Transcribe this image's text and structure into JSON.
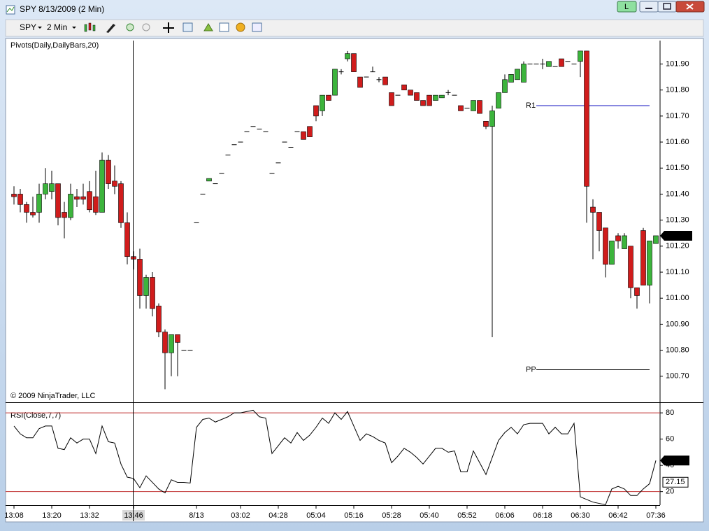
{
  "window": {
    "title": "SPY  8/13/2009 (2 Min)",
    "workspace_button": "L",
    "toolbar": {
      "instrument": "SPY",
      "interval": "2 Min"
    }
  },
  "chart_data": [
    {
      "type": "candlestick",
      "title": "Pivots(Daily,DailyBars,20)",
      "copyright": "© 2009 NinjaTrader, LLC",
      "up_color": "#3cb43c",
      "down_color": "#d01c1c",
      "ylim": [
        100.6,
        101.99
      ],
      "yticks": [
        {
          "value": 100.7,
          "label": "100.70"
        },
        {
          "value": 100.8,
          "label": "100.80"
        },
        {
          "value": 100.9,
          "label": "100.90"
        },
        {
          "value": 101.0,
          "label": "101.00"
        },
        {
          "value": 101.1,
          "label": "101.10"
        },
        {
          "value": 101.2,
          "label": "101.20"
        },
        {
          "value": 101.3,
          "label": "101.30"
        },
        {
          "value": 101.4,
          "label": "101.40"
        },
        {
          "value": 101.5,
          "label": "101.50"
        },
        {
          "value": 101.6,
          "label": "101.60"
        },
        {
          "value": 101.7,
          "label": "101.70"
        },
        {
          "value": 101.8,
          "label": "101.80"
        },
        {
          "value": 101.9,
          "label": "101.90"
        }
      ],
      "last_price": 101.24,
      "pivots": [
        {
          "name": "R1",
          "value": 101.74,
          "color": "#1010c0"
        },
        {
          "name": "PP",
          "value": 100.725,
          "color": "#000000"
        }
      ],
      "open": [
        101.4,
        101.4,
        101.36,
        101.33,
        101.33,
        101.4,
        101.41,
        101.44,
        101.33,
        101.31,
        101.39,
        101.39,
        101.41,
        101.39,
        101.33,
        101.53,
        101.45,
        101.44,
        101.29,
        101.16,
        101.15,
        101.01,
        101.08,
        100.97,
        100.87,
        100.79,
        100.86,
        100.8,
        100.8,
        101.29,
        101.4,
        101.45,
        101.44,
        101.48,
        101.55,
        101.59,
        101.6,
        101.64,
        101.66,
        101.65,
        101.64,
        101.48,
        101.52,
        101.6,
        101.58,
        101.64,
        101.64,
        101.66,
        101.74,
        101.72,
        101.78,
        101.78,
        101.87,
        101.92,
        101.94,
        101.85,
        101.85,
        101.87,
        101.84,
        101.85,
        101.79,
        101.78,
        101.82,
        101.8,
        101.79,
        101.76,
        101.78,
        101.76,
        101.77,
        101.79,
        101.78,
        101.74,
        101.73,
        101.72,
        101.76,
        101.68,
        101.66,
        101.73,
        101.79,
        101.83,
        101.84,
        101.83,
        101.9,
        101.9,
        101.9,
        101.89,
        101.89,
        101.92,
        101.91,
        101.9,
        101.91,
        101.95,
        101.35,
        101.33,
        101.27,
        101.13,
        101.24,
        101.19,
        101.2,
        101.04,
        101.26,
        101.05,
        101.21
      ],
      "high": [
        101.43,
        101.42,
        101.37,
        101.39,
        101.44,
        101.5,
        101.49,
        101.44,
        101.37,
        101.44,
        101.42,
        101.44,
        101.45,
        101.49,
        101.56,
        101.55,
        101.51,
        101.45,
        101.33,
        101.18,
        101.19,
        101.09,
        101.1,
        100.98,
        100.88,
        100.86,
        100.86,
        100.8,
        100.8,
        101.29,
        101.4,
        101.46,
        101.44,
        101.48,
        101.55,
        101.59,
        101.6,
        101.64,
        101.66,
        101.65,
        101.64,
        101.48,
        101.52,
        101.6,
        101.58,
        101.64,
        101.64,
        101.66,
        101.74,
        101.78,
        101.78,
        101.88,
        101.88,
        101.95,
        101.94,
        101.85,
        101.85,
        101.89,
        101.85,
        101.85,
        101.79,
        101.78,
        101.82,
        101.8,
        101.79,
        101.76,
        101.78,
        101.78,
        101.78,
        101.8,
        101.78,
        101.74,
        101.73,
        101.76,
        101.76,
        101.68,
        101.74,
        101.79,
        101.86,
        101.86,
        101.88,
        101.91,
        101.9,
        101.9,
        101.92,
        101.91,
        101.89,
        101.92,
        101.91,
        101.9,
        101.95,
        101.95,
        101.38,
        101.33,
        101.27,
        101.22,
        101.25,
        101.25,
        101.2,
        101.04,
        101.27,
        101.22,
        101.24
      ],
      "low": [
        101.36,
        101.33,
        101.29,
        101.31,
        101.29,
        101.38,
        101.38,
        101.28,
        101.23,
        101.3,
        101.35,
        101.36,
        101.33,
        101.32,
        101.33,
        101.42,
        101.4,
        101.27,
        101.13,
        101.11,
        100.96,
        100.96,
        100.93,
        100.85,
        100.65,
        100.7,
        100.7,
        100.8,
        100.8,
        101.29,
        101.4,
        101.45,
        101.44,
        101.48,
        101.55,
        101.59,
        101.6,
        101.64,
        101.66,
        101.65,
        101.64,
        101.48,
        101.52,
        101.6,
        101.58,
        101.64,
        101.61,
        101.62,
        101.68,
        101.7,
        101.76,
        101.78,
        101.86,
        101.91,
        101.87,
        101.81,
        101.85,
        101.87,
        101.83,
        101.82,
        101.74,
        101.78,
        101.8,
        101.78,
        101.76,
        101.74,
        101.74,
        101.76,
        101.77,
        101.78,
        101.78,
        101.72,
        101.73,
        101.72,
        101.71,
        101.65,
        100.85,
        101.73,
        101.79,
        101.83,
        101.84,
        101.83,
        101.9,
        101.9,
        101.88,
        101.89,
        101.89,
        101.89,
        101.91,
        101.9,
        101.85,
        101.29,
        101.15,
        101.18,
        101.08,
        101.13,
        101.19,
        101.19,
        101.0,
        100.96,
        101.05,
        100.98,
        101.21
      ],
      "close": [
        101.39,
        101.36,
        101.33,
        101.32,
        101.4,
        101.44,
        101.44,
        101.31,
        101.31,
        101.4,
        101.38,
        101.38,
        101.34,
        101.33,
        101.53,
        101.44,
        101.43,
        101.29,
        101.16,
        101.15,
        101.01,
        101.08,
        100.96,
        100.87,
        100.79,
        100.86,
        100.83,
        100.8,
        100.8,
        101.29,
        101.4,
        101.46,
        101.44,
        101.48,
        101.55,
        101.59,
        101.6,
        101.64,
        101.66,
        101.65,
        101.64,
        101.48,
        101.52,
        101.6,
        101.58,
        101.64,
        101.61,
        101.62,
        101.7,
        101.78,
        101.76,
        101.88,
        101.87,
        101.94,
        101.87,
        101.81,
        101.85,
        101.87,
        101.84,
        101.82,
        101.74,
        101.78,
        101.8,
        101.78,
        101.76,
        101.74,
        101.74,
        101.78,
        101.78,
        101.79,
        101.78,
        101.72,
        101.73,
        101.76,
        101.71,
        101.66,
        101.72,
        101.79,
        101.84,
        101.86,
        101.88,
        101.9,
        101.9,
        101.9,
        101.9,
        101.91,
        101.89,
        101.89,
        101.91,
        101.9,
        101.95,
        101.43,
        101.33,
        101.26,
        101.13,
        101.22,
        101.22,
        101.24,
        101.04,
        101.01,
        101.05,
        101.22,
        101.24
      ]
    },
    {
      "type": "line",
      "title": "RSI(Close,7,7)",
      "color": "#000000",
      "level_color": "#c03030",
      "ylim": [
        9.7,
        87
      ],
      "yticks": [
        20,
        40,
        60,
        80
      ],
      "levels": [
        20,
        80
      ],
      "last_value": 43.67,
      "avg_value": 27.15,
      "categories": [
        "13:08",
        null,
        null,
        null,
        null,
        null,
        "13:20",
        null,
        null,
        null,
        null,
        null,
        "13:32",
        null,
        null,
        null,
        null,
        null,
        null,
        "13:46",
        null,
        null,
        null,
        null,
        null,
        null,
        null,
        null,
        null,
        "8/13",
        null,
        null,
        null,
        null,
        null,
        null,
        "03:02",
        null,
        null,
        null,
        null,
        null,
        "04:28",
        null,
        null,
        null,
        null,
        null,
        "05:04",
        null,
        null,
        null,
        null,
        null,
        "05:16",
        null,
        null,
        null,
        null,
        null,
        "05:28",
        null,
        null,
        null,
        null,
        null,
        "05:40",
        null,
        null,
        null,
        null,
        null,
        "05:52",
        null,
        null,
        null,
        null,
        null,
        "06:06",
        null,
        null,
        null,
        null,
        null,
        "06:18",
        null,
        null,
        null,
        null,
        null,
        "06:30",
        null,
        null,
        null,
        null,
        null,
        "06:42",
        null,
        null,
        null,
        null,
        null,
        "07:36"
      ],
      "values": [
        70,
        64,
        61,
        61,
        68,
        70,
        70,
        53,
        52,
        61,
        57,
        60,
        60,
        49,
        70,
        58,
        57,
        41,
        31,
        30,
        23,
        32,
        27,
        22,
        19,
        29,
        27,
        27,
        26.5,
        69,
        75,
        76,
        73,
        75,
        77,
        80,
        80,
        81,
        82,
        77,
        76,
        49,
        55,
        61,
        57,
        65,
        59,
        63,
        69,
        76,
        72,
        80,
        75,
        81,
        70,
        59,
        64,
        62,
        59,
        57,
        42,
        47,
        53,
        50,
        46,
        41,
        47,
        53,
        53,
        50,
        51,
        35,
        35,
        51,
        42,
        33,
        46,
        59,
        65,
        69,
        64,
        71,
        72,
        72,
        72,
        64,
        69,
        64,
        64,
        72,
        16,
        14,
        12,
        11,
        10,
        22,
        24,
        22,
        17,
        17,
        22,
        26,
        43.67
      ]
    }
  ]
}
